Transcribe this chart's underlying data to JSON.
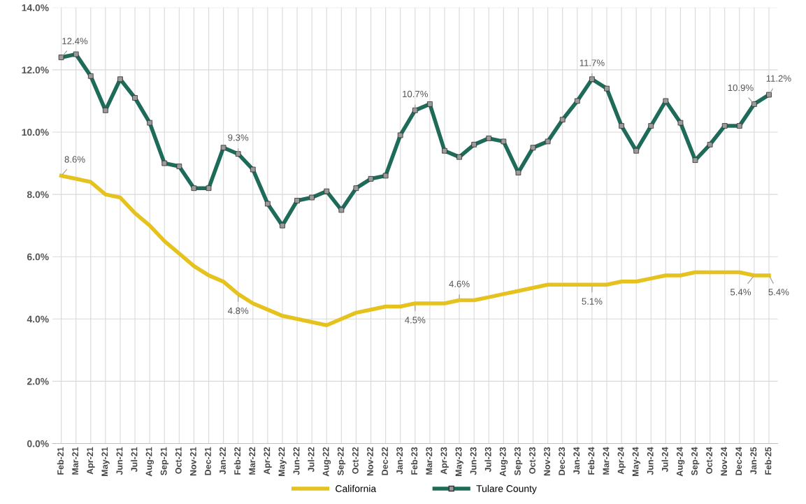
{
  "chart_data": {
    "type": "line",
    "categories": [
      "Feb-21",
      "Mar-21",
      "Apr-21",
      "May-21",
      "Jun-21",
      "Jul-21",
      "Aug-21",
      "Sep-21",
      "Oct-21",
      "Nov-21",
      "Dec-21",
      "Jan-22",
      "Feb-22",
      "Mar-22",
      "Apr-22",
      "May-22",
      "Jun-22",
      "Jul-22",
      "Aug-22",
      "Sep-22",
      "Oct-22",
      "Nov-22",
      "Dec-22",
      "Jan-23",
      "Feb-23",
      "Mar-23",
      "Apr-23",
      "May-23",
      "Jun-23",
      "Jul-23",
      "Aug-23",
      "Sep-23",
      "Oct-23",
      "Nov-23",
      "Dec-23",
      "Jan-24",
      "Feb-24",
      "Mar-24",
      "Apr-24",
      "May-24",
      "Jun-24",
      "Jul-24",
      "Aug-24",
      "Sep-24",
      "Oct-24",
      "Nov-24",
      "Dec-24",
      "Jan-25",
      "Feb-25"
    ],
    "series": [
      {
        "name": "California",
        "color": "#e6c21e",
        "marker": "none",
        "values": [
          8.6,
          8.5,
          8.4,
          8.0,
          7.9,
          7.4,
          7.0,
          6.5,
          6.1,
          5.7,
          5.4,
          5.2,
          4.8,
          4.5,
          4.3,
          4.1,
          4.0,
          3.9,
          3.8,
          4.0,
          4.2,
          4.3,
          4.4,
          4.4,
          4.5,
          4.5,
          4.5,
          4.6,
          4.6,
          4.7,
          4.8,
          4.9,
          5.0,
          5.1,
          5.1,
          5.1,
          5.1,
          5.1,
          5.2,
          5.2,
          5.3,
          5.4,
          5.4,
          5.5,
          5.5,
          5.5,
          5.5,
          5.4,
          5.4
        ]
      },
      {
        "name": "Tulare County",
        "color": "#1f6b5a",
        "marker": "square",
        "values": [
          12.4,
          12.5,
          11.8,
          10.7,
          11.7,
          11.1,
          10.3,
          9.0,
          8.9,
          8.2,
          8.2,
          9.5,
          9.3,
          8.8,
          7.7,
          7.0,
          7.8,
          7.9,
          8.1,
          7.5,
          8.2,
          8.5,
          8.6,
          9.9,
          10.7,
          10.9,
          9.4,
          9.2,
          9.6,
          9.8,
          9.7,
          8.7,
          9.5,
          9.7,
          10.4,
          11.0,
          11.7,
          11.4,
          10.2,
          9.4,
          10.2,
          11.0,
          10.3,
          9.1,
          9.6,
          10.2,
          10.2,
          10.9,
          11.2
        ]
      }
    ],
    "ylim": [
      0,
      14
    ],
    "yticks": [
      {
        "value": 0,
        "label": "0.0%"
      },
      {
        "value": 2,
        "label": "2.0%"
      },
      {
        "value": 4,
        "label": "4.0%"
      },
      {
        "value": 6,
        "label": "6.0%"
      },
      {
        "value": 8,
        "label": "8.0%"
      },
      {
        "value": 10,
        "label": "10.0%"
      },
      {
        "value": 12,
        "label": "12.0%"
      },
      {
        "value": 14,
        "label": "14.0%"
      }
    ],
    "grid": true,
    "legend": "bottom",
    "line_style": "solid",
    "annotations": [
      {
        "text": "12.4%",
        "x": "Feb-21",
        "y": 12.4
      },
      {
        "text": "8.6%",
        "x": "Feb-21",
        "y": 8.6
      },
      {
        "text": "9.3%",
        "x": "Feb-22",
        "y": 9.3
      },
      {
        "text": "4.8%",
        "x": "Feb-22",
        "y": 4.8
      },
      {
        "text": "10.7%",
        "x": "Feb-23",
        "y": 10.7
      },
      {
        "text": "4.5%",
        "x": "Feb-23",
        "y": 4.5
      },
      {
        "text": "4.6%",
        "x": "May-23",
        "y": 4.6
      },
      {
        "text": "11.7%",
        "x": "Feb-24",
        "y": 11.7
      },
      {
        "text": "5.1%",
        "x": "Feb-24",
        "y": 5.1
      },
      {
        "text": "5.4%",
        "x": "Jan-25",
        "y": 5.4
      },
      {
        "text": "10.9%",
        "x": "Jan-25",
        "y": 10.9
      },
      {
        "text": "5.4%",
        "x": "Feb-25",
        "y": 5.4
      },
      {
        "text": "11.2%",
        "x": "Feb-25",
        "y": 11.2
      }
    ]
  }
}
